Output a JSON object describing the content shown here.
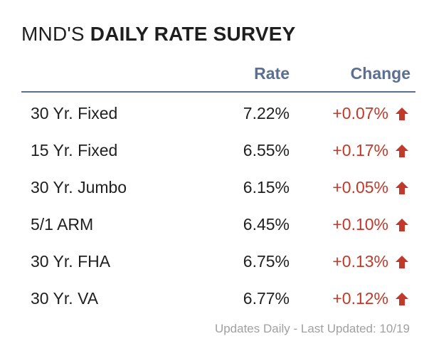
{
  "header": {
    "title_prefix": "MND'S",
    "title_bold": "DAILY RATE SURVEY"
  },
  "table": {
    "columns": {
      "rate": "Rate",
      "change": "Change"
    },
    "rows": [
      {
        "name": "30 Yr. Fixed",
        "rate": "7.22%",
        "change": "+0.07%",
        "direction": "up-arrow-icon"
      },
      {
        "name": "15 Yr. Fixed",
        "rate": "6.55%",
        "change": "+0.17%",
        "direction": "up-arrow-icon"
      },
      {
        "name": "30 Yr. Jumbo",
        "rate": "6.15%",
        "change": "+0.05%",
        "direction": "up-arrow-icon"
      },
      {
        "name": "5/1 ARM",
        "rate": "6.45%",
        "change": "+0.10%",
        "direction": "up-arrow-icon"
      },
      {
        "name": "30 Yr. FHA",
        "rate": "6.75%",
        "change": "+0.13%",
        "direction": "up-arrow-icon"
      },
      {
        "name": "30 Yr. VA",
        "rate": "6.77%",
        "change": "+0.12%",
        "direction": "up-arrow-icon"
      }
    ]
  },
  "footer": {
    "text": "Updates Daily - Last Updated: 10/19"
  },
  "colors": {
    "header_accent": "#5b6f93",
    "change_up": "#c0392b",
    "footer_text": "#a0a0a0"
  }
}
